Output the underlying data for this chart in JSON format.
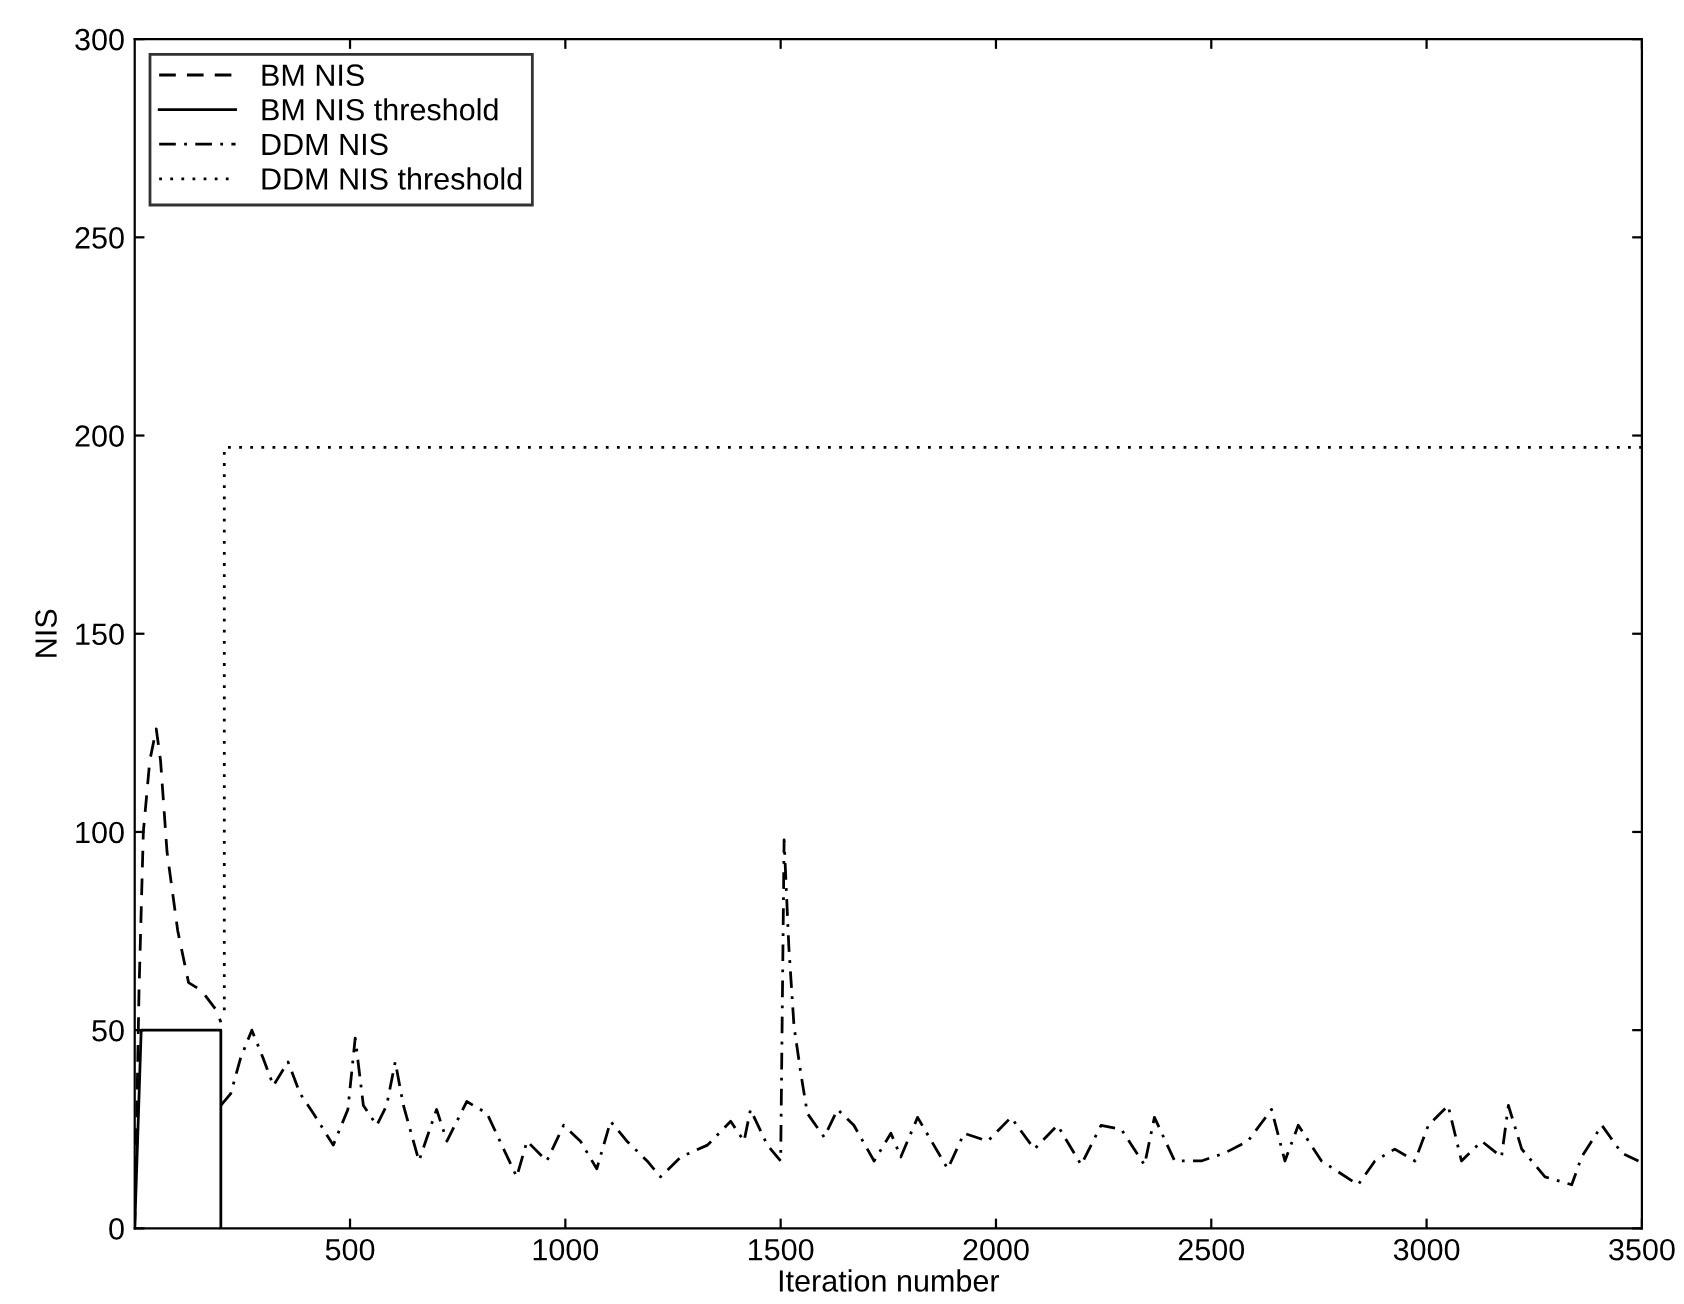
{
  "chart_data": {
    "type": "line",
    "xlabel": "Iteration number",
    "ylabel": "NIS",
    "xlim": [
      0,
      3500
    ],
    "ylim": [
      0,
      300
    ],
    "xticks": [
      500,
      1000,
      1500,
      2000,
      2500,
      3000,
      3500
    ],
    "yticks": [
      0,
      50,
      100,
      150,
      200,
      250,
      300
    ],
    "grid": false,
    "legend": "top left",
    "series": [
      {
        "name": "BM NIS",
        "color": "#000000",
        "line_style": "dashed",
        "x": [
          0,
          10,
          20,
          35,
          50,
          60,
          75,
          100,
          125,
          155,
          190,
          200
        ],
        "values": [
          0,
          60,
          100,
          118,
          126,
          118,
          95,
          75,
          62,
          60,
          55,
          52
        ]
      },
      {
        "name": "BM NIS threshold",
        "color": "#000000",
        "line_style": "solid",
        "x": [
          0,
          15,
          200,
          200
        ],
        "values": [
          0,
          50,
          50,
          0
        ]
      },
      {
        "name": "DDM NIS",
        "color": "#000000",
        "line_style": "dashdot",
        "x": [
          200,
          223,
          246,
          272,
          298,
          322,
          356,
          384,
          415,
          461,
          495,
          512,
          531,
          562,
          585,
          605,
          624,
          660,
          701,
          725,
          771,
          818,
          887,
          911,
          957,
          996,
          1035,
          1073,
          1105,
          1143,
          1190,
          1221,
          1268,
          1330,
          1384,
          1415,
          1430,
          1469,
          1500,
          1508,
          1519,
          1531,
          1547,
          1562,
          1601,
          1632,
          1670,
          1717,
          1756,
          1779,
          1818,
          1888,
          1926,
          1981,
          2035,
          2089,
          2143,
          2198,
          2244,
          2291,
          2345,
          2368,
          2415,
          2477,
          2531,
          2585,
          2640,
          2671,
          2702,
          2756,
          2841,
          2880,
          2926,
          2973,
          3004,
          3050,
          3081,
          3128,
          3174,
          3190,
          3221,
          3275,
          3337,
          3360,
          3407,
          3453,
          3492
        ],
        "values": [
          31,
          34,
          43,
          50,
          43,
          36,
          42,
          34,
          29,
          21,
          30,
          48,
          31,
          26,
          31,
          42,
          31,
          17,
          30,
          22,
          32,
          29,
          13,
          22,
          17,
          26,
          22,
          15,
          27,
          22,
          17,
          13,
          18,
          21,
          27,
          22,
          30,
          21,
          17,
          98,
          71,
          51,
          39,
          29,
          23,
          30,
          26,
          17,
          24,
          18,
          28,
          15,
          24,
          22,
          28,
          20,
          26,
          16,
          26,
          25,
          16,
          28,
          17,
          17,
          19,
          22,
          30,
          17,
          26,
          17,
          11,
          17,
          20,
          17,
          26,
          31,
          17,
          22,
          18,
          31,
          20,
          13,
          11,
          18,
          26,
          19,
          17
        ]
      },
      {
        "name": "DDM NIS threshold",
        "color": "#000000",
        "line_style": "dotted",
        "x": [
          208,
          208,
          3500
        ],
        "values": [
          55,
          197,
          197
        ]
      }
    ]
  }
}
